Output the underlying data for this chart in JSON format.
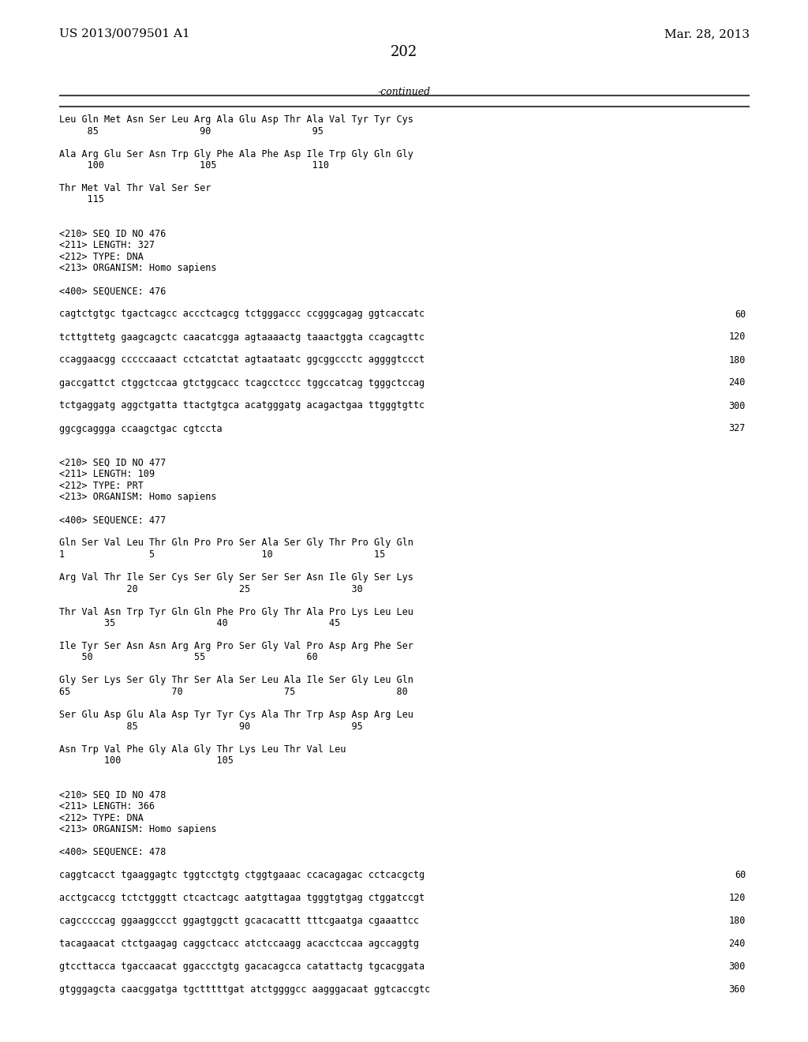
{
  "header_left": "US 2013/0079501 A1",
  "header_right": "Mar. 28, 2013",
  "page_number": "202",
  "continued": "-continued",
  "background_color": "#ffffff",
  "text_color": "#000000",
  "content_lines": [
    {
      "text": "Leu Gln Met Asn Ser Leu Arg Ala Glu Asp Thr Ala Val Tyr Tyr Cys",
      "type": "seq"
    },
    {
      "text": "     85                  90                  95",
      "type": "num"
    },
    {
      "text": "",
      "type": "blank"
    },
    {
      "text": "Ala Arg Glu Ser Asn Trp Gly Phe Ala Phe Asp Ile Trp Gly Gln Gly",
      "type": "seq"
    },
    {
      "text": "     100                 105                 110",
      "type": "num"
    },
    {
      "text": "",
      "type": "blank"
    },
    {
      "text": "Thr Met Val Thr Val Ser Ser",
      "type": "seq"
    },
    {
      "text": "     115",
      "type": "num"
    },
    {
      "text": "",
      "type": "blank"
    },
    {
      "text": "",
      "type": "blank"
    },
    {
      "text": "<210> SEQ ID NO 476",
      "type": "meta"
    },
    {
      "text": "<211> LENGTH: 327",
      "type": "meta"
    },
    {
      "text": "<212> TYPE: DNA",
      "type": "meta"
    },
    {
      "text": "<213> ORGANISM: Homo sapiens",
      "type": "meta"
    },
    {
      "text": "",
      "type": "blank"
    },
    {
      "text": "<400> SEQUENCE: 476",
      "type": "meta"
    },
    {
      "text": "",
      "type": "blank"
    },
    {
      "text": "cagtctgtgc tgactcagcc accctcagcg tctgggaccc ccgggcagag ggtcaccatc",
      "type": "dna",
      "num": "60"
    },
    {
      "text": "",
      "type": "blank"
    },
    {
      "text": "tcttgttetg gaagcagctc caacatcgga agtaaaactg taaactggta ccagcagttc",
      "type": "dna",
      "num": "120"
    },
    {
      "text": "",
      "type": "blank"
    },
    {
      "text": "ccaggaacgg cccccaaact cctcatctat agtaataatc ggcggccctc aggggtccct",
      "type": "dna",
      "num": "180"
    },
    {
      "text": "",
      "type": "blank"
    },
    {
      "text": "gaccgattct ctggctccaa gtctggcacc tcagcctccc tggccatcag tgggctccag",
      "type": "dna",
      "num": "240"
    },
    {
      "text": "",
      "type": "blank"
    },
    {
      "text": "tctgaggatg aggctgatta ttactgtgca acatgggatg acagactgaa ttgggtgttc",
      "type": "dna",
      "num": "300"
    },
    {
      "text": "",
      "type": "blank"
    },
    {
      "text": "ggcgcaggga ccaagctgac cgtccta",
      "type": "dna",
      "num": "327"
    },
    {
      "text": "",
      "type": "blank"
    },
    {
      "text": "",
      "type": "blank"
    },
    {
      "text": "<210> SEQ ID NO 477",
      "type": "meta"
    },
    {
      "text": "<211> LENGTH: 109",
      "type": "meta"
    },
    {
      "text": "<212> TYPE: PRT",
      "type": "meta"
    },
    {
      "text": "<213> ORGANISM: Homo sapiens",
      "type": "meta"
    },
    {
      "text": "",
      "type": "blank"
    },
    {
      "text": "<400> SEQUENCE: 477",
      "type": "meta"
    },
    {
      "text": "",
      "type": "blank"
    },
    {
      "text": "Gln Ser Val Leu Thr Gln Pro Pro Ser Ala Ser Gly Thr Pro Gly Gln",
      "type": "seq"
    },
    {
      "text": "1               5                   10                  15",
      "type": "num"
    },
    {
      "text": "",
      "type": "blank"
    },
    {
      "text": "Arg Val Thr Ile Ser Cys Ser Gly Ser Ser Ser Asn Ile Gly Ser Lys",
      "type": "seq"
    },
    {
      "text": "            20                  25                  30",
      "type": "num"
    },
    {
      "text": "",
      "type": "blank"
    },
    {
      "text": "Thr Val Asn Trp Tyr Gln Gln Phe Pro Gly Thr Ala Pro Lys Leu Leu",
      "type": "seq"
    },
    {
      "text": "        35                  40                  45",
      "type": "num"
    },
    {
      "text": "",
      "type": "blank"
    },
    {
      "text": "Ile Tyr Ser Asn Asn Arg Arg Pro Ser Gly Val Pro Asp Arg Phe Ser",
      "type": "seq"
    },
    {
      "text": "    50                  55                  60",
      "type": "num"
    },
    {
      "text": "",
      "type": "blank"
    },
    {
      "text": "Gly Ser Lys Ser Gly Thr Ser Ala Ser Leu Ala Ile Ser Gly Leu Gln",
      "type": "seq"
    },
    {
      "text": "65                  70                  75                  80",
      "type": "num"
    },
    {
      "text": "",
      "type": "blank"
    },
    {
      "text": "Ser Glu Asp Glu Ala Asp Tyr Tyr Cys Ala Thr Trp Asp Asp Arg Leu",
      "type": "seq"
    },
    {
      "text": "            85                  90                  95",
      "type": "num"
    },
    {
      "text": "",
      "type": "blank"
    },
    {
      "text": "Asn Trp Val Phe Gly Ala Gly Thr Lys Leu Thr Val Leu",
      "type": "seq"
    },
    {
      "text": "        100                 105",
      "type": "num"
    },
    {
      "text": "",
      "type": "blank"
    },
    {
      "text": "",
      "type": "blank"
    },
    {
      "text": "<210> SEQ ID NO 478",
      "type": "meta"
    },
    {
      "text": "<211> LENGTH: 366",
      "type": "meta"
    },
    {
      "text": "<212> TYPE: DNA",
      "type": "meta"
    },
    {
      "text": "<213> ORGANISM: Homo sapiens",
      "type": "meta"
    },
    {
      "text": "",
      "type": "blank"
    },
    {
      "text": "<400> SEQUENCE: 478",
      "type": "meta"
    },
    {
      "text": "",
      "type": "blank"
    },
    {
      "text": "caggtcacct tgaaggagtc tggtcctgtg ctggtgaaac ccacagagac cctcacgctg",
      "type": "dna",
      "num": "60"
    },
    {
      "text": "",
      "type": "blank"
    },
    {
      "text": "acctgcaccg tctctgggtt ctcactcagc aatgttagaa tgggtgtgag ctggatccgt",
      "type": "dna",
      "num": "120"
    },
    {
      "text": "",
      "type": "blank"
    },
    {
      "text": "cagcccccag ggaaggccct ggagtggctt gcacacattt tttcgaatga cgaaattcc",
      "type": "dna",
      "num": "180"
    },
    {
      "text": "",
      "type": "blank"
    },
    {
      "text": "tacagaacat ctctgaagag caggctcacc atctccaagg acacctccaa agccaggtg",
      "type": "dna",
      "num": "240"
    },
    {
      "text": "",
      "type": "blank"
    },
    {
      "text": "gtccttacca tgaccaacat ggaccctgtg gacacagcca catattactg tgcacggata",
      "type": "dna",
      "num": "300"
    },
    {
      "text": "",
      "type": "blank"
    },
    {
      "text": "gtgggagcta caacggatga tgctttttgat atctggggcc aagggacaat ggtcaccgtc",
      "type": "dna",
      "num": "360"
    }
  ]
}
